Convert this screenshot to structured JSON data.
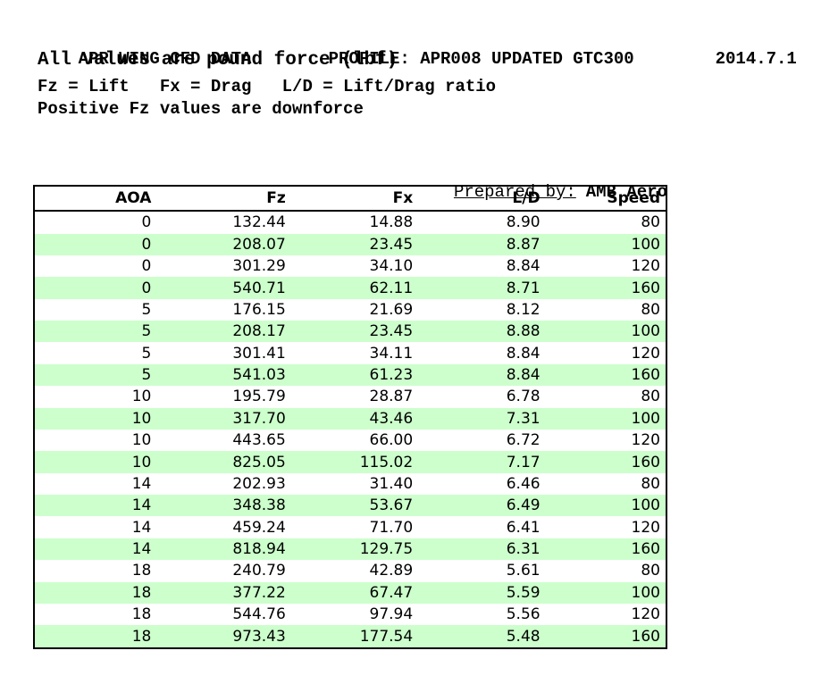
{
  "header": {
    "title": "APR WING CFD DATA",
    "profile": "PROFILE: APR008 UPDATED GTC300",
    "version_date": "2014.7.1",
    "subtitle": "All values are pound force (lbf)",
    "legend": "Fz = Lift   Fx = Drag   L/D = Lift/Drag ratio",
    "note": "Positive Fz values are downforce"
  },
  "prepared_by": {
    "label": "Prepared by:",
    "value": "AMB Aero"
  },
  "table": {
    "columns": [
      "AOA",
      "Fz",
      "Fx",
      "L/D",
      "Speed"
    ],
    "rows": [
      [
        "0",
        "132.44",
        "14.88",
        "8.90",
        "80"
      ],
      [
        "0",
        "208.07",
        "23.45",
        "8.87",
        "100"
      ],
      [
        "0",
        "301.29",
        "34.10",
        "8.84",
        "120"
      ],
      [
        "0",
        "540.71",
        "62.11",
        "8.71",
        "160"
      ],
      [
        "5",
        "176.15",
        "21.69",
        "8.12",
        "80"
      ],
      [
        "5",
        "208.17",
        "23.45",
        "8.88",
        "100"
      ],
      [
        "5",
        "301.41",
        "34.11",
        "8.84",
        "120"
      ],
      [
        "5",
        "541.03",
        "61.23",
        "8.84",
        "160"
      ],
      [
        "10",
        "195.79",
        "28.87",
        "6.78",
        "80"
      ],
      [
        "10",
        "317.70",
        "43.46",
        "7.31",
        "100"
      ],
      [
        "10",
        "443.65",
        "66.00",
        "6.72",
        "120"
      ],
      [
        "10",
        "825.05",
        "115.02",
        "7.17",
        "160"
      ],
      [
        "14",
        "202.93",
        "31.40",
        "6.46",
        "80"
      ],
      [
        "14",
        "348.38",
        "53.67",
        "6.49",
        "100"
      ],
      [
        "14",
        "459.24",
        "71.70",
        "6.41",
        "120"
      ],
      [
        "14",
        "818.94",
        "129.75",
        "6.31",
        "160"
      ],
      [
        "18",
        "240.79",
        "42.89",
        "5.61",
        "80"
      ],
      [
        "18",
        "377.22",
        "67.47",
        "5.59",
        "100"
      ],
      [
        "18",
        "544.76",
        "97.94",
        "5.56",
        "120"
      ],
      [
        "18",
        "973.43",
        "177.54",
        "5.48",
        "160"
      ]
    ]
  },
  "colors": {
    "background": "#ffffff",
    "text": "#000000",
    "border": "#000000",
    "row_alt_green": "#ccffcc"
  }
}
